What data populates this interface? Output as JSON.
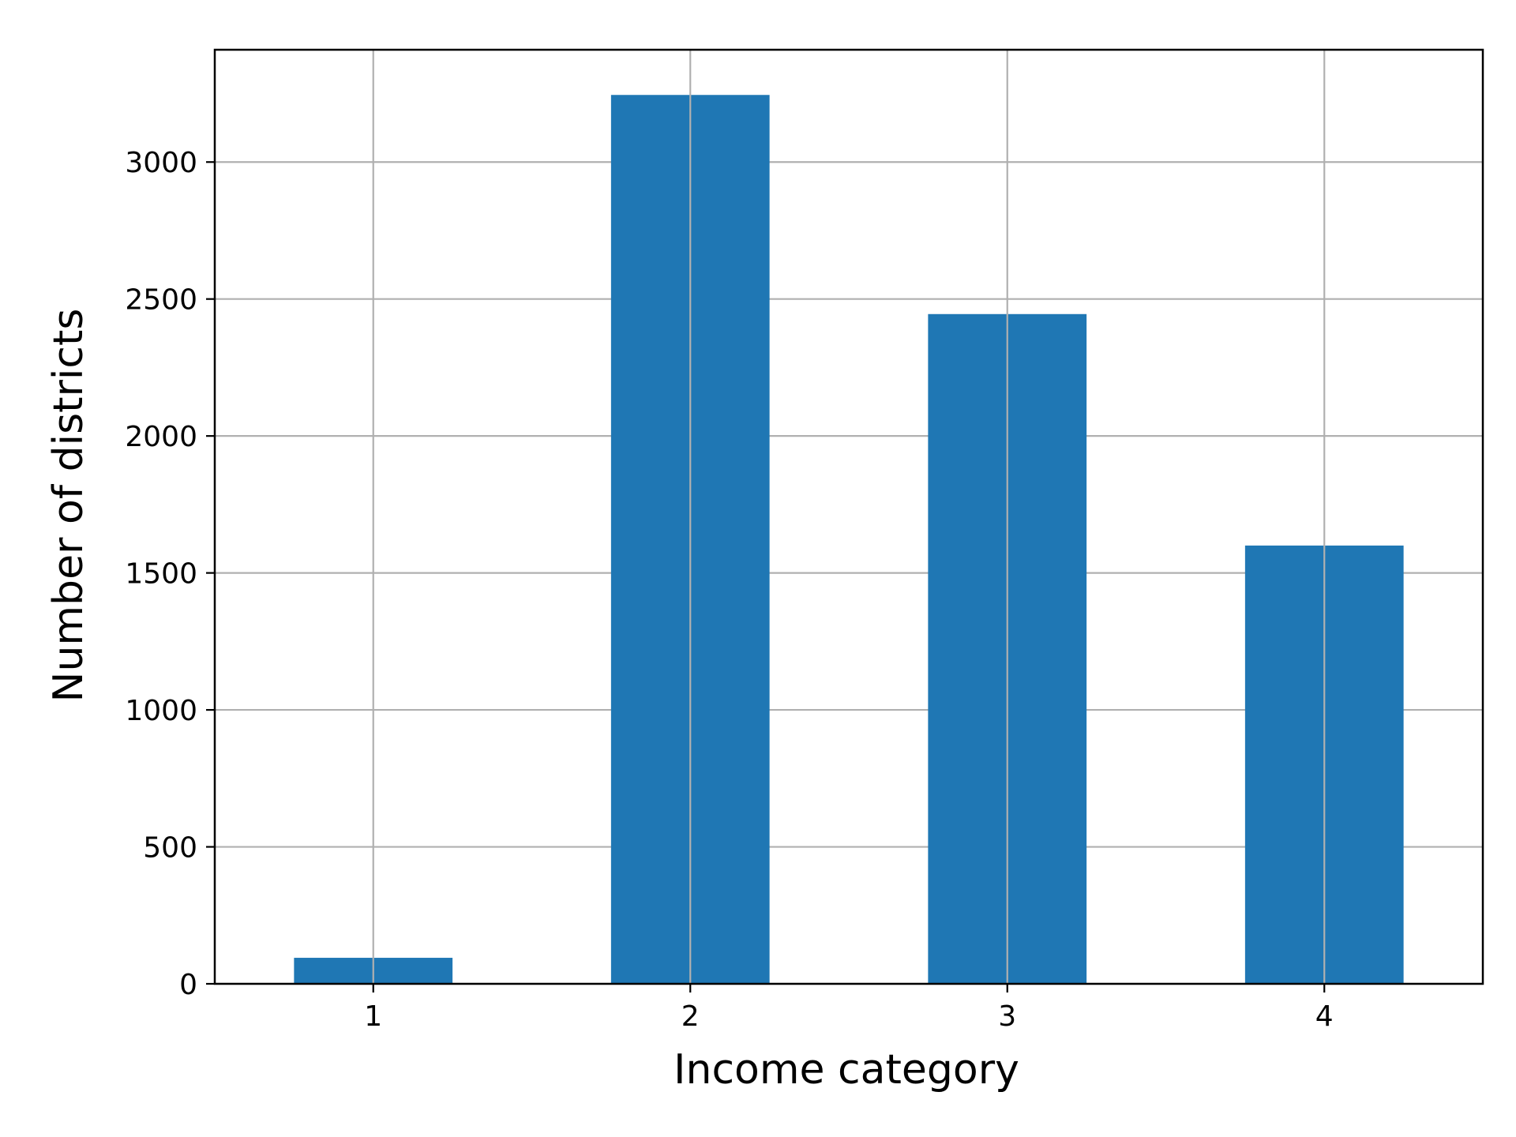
{
  "chart_data": {
    "type": "bar",
    "categories": [
      "1",
      "2",
      "3",
      "4"
    ],
    "values": [
      95,
      3245,
      2445,
      1600
    ],
    "title": "",
    "xlabel": "Income category",
    "ylabel": "Number of districts",
    "ylim": [
      0,
      3410
    ],
    "yticks": [
      0,
      500,
      1000,
      1500,
      2000,
      2500,
      3000
    ],
    "ytick_labels": [
      "0",
      "500",
      "1000",
      "1500",
      "2000",
      "2500",
      "3000"
    ],
    "grid": true,
    "legend": "none",
    "colors": {
      "bar": "#1f77b4",
      "grid": "#b0b0b0",
      "axes": "#000000",
      "background": "#ffffff"
    }
  }
}
